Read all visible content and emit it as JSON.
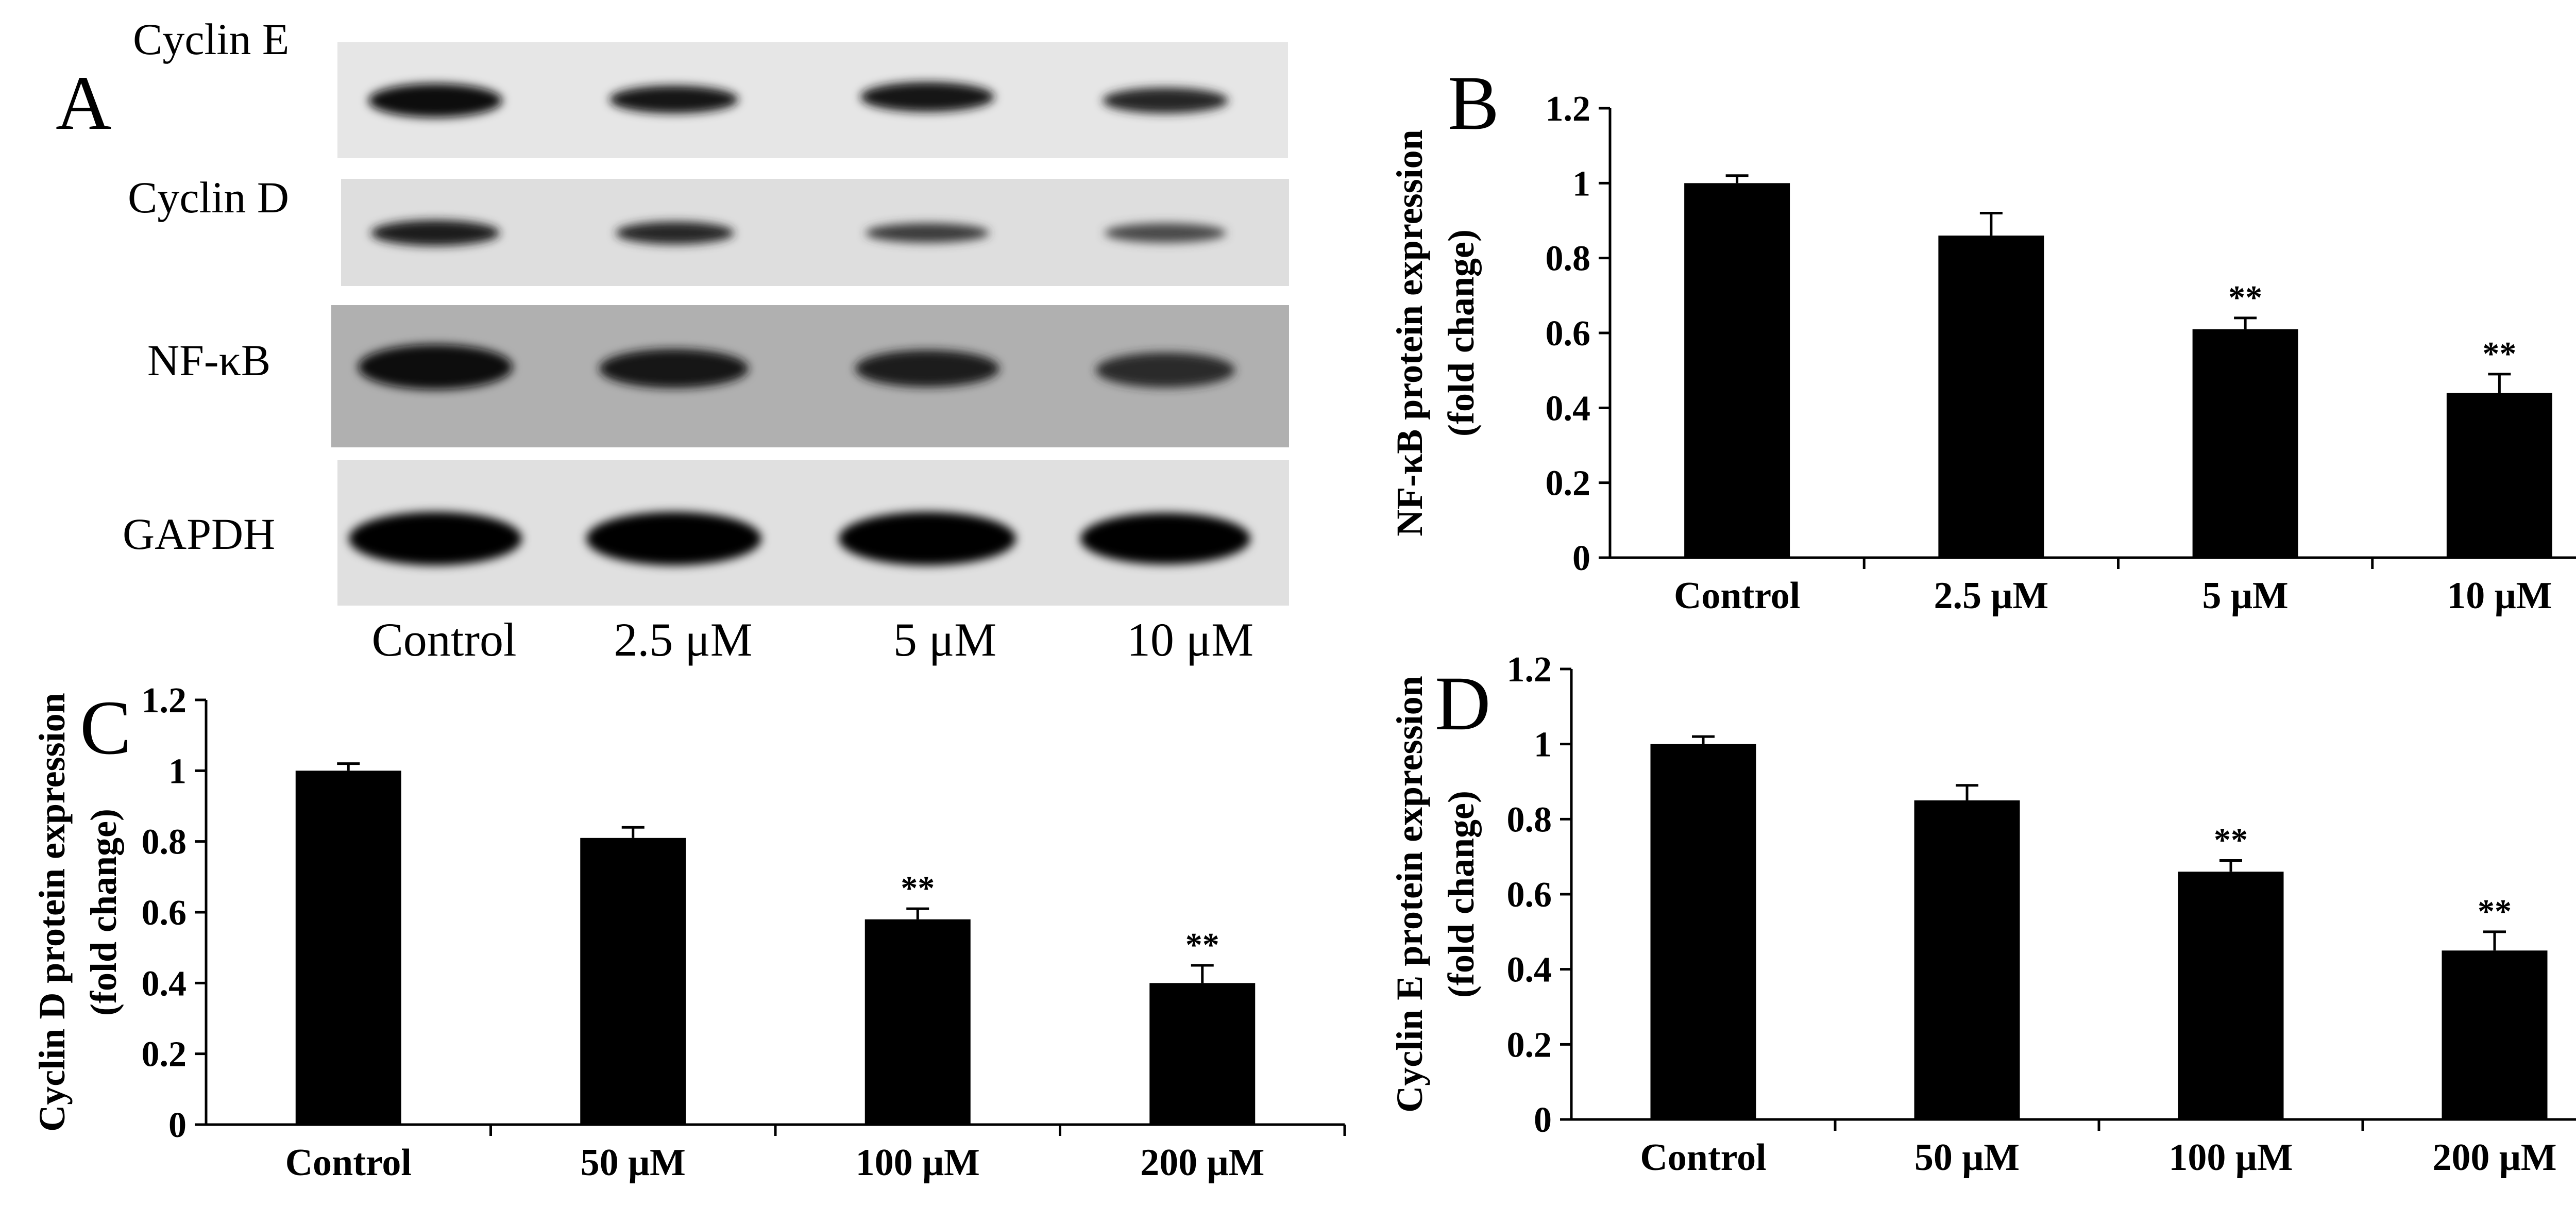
{
  "blot": {
    "letter": "A",
    "labels": [
      "Cyclin E",
      "Cyclin D",
      "NF-κB",
      "GAPDH"
    ],
    "lanes": [
      "Control",
      "2.5 μM",
      "5 μM",
      "10 μM"
    ]
  },
  "chart_data": [
    {
      "letter": "B",
      "type": "bar",
      "categories": [
        "Control",
        "2.5 μM",
        "5 μM",
        "10 μM"
      ],
      "values": [
        1.0,
        0.86,
        0.61,
        0.44
      ],
      "errors": [
        0.02,
        0.06,
        0.03,
        0.05
      ],
      "significance": [
        "",
        "",
        "**",
        "**"
      ],
      "ylabel_lines": [
        "NF-κB protein expression",
        "(fold change)"
      ],
      "xlabel": "",
      "ylim": [
        0,
        1.2
      ],
      "yticks": [
        0,
        0.2,
        0.4,
        0.6,
        0.8,
        1,
        1.2
      ],
      "ytick_labels": [
        "0",
        "0.2",
        "0.4",
        "0.6",
        "0.8",
        "1",
        "1.2"
      ],
      "bar_color": "#000000"
    },
    {
      "letter": "C",
      "type": "bar",
      "categories": [
        "Control",
        "50 μM",
        "100 μM",
        "200 μM"
      ],
      "values": [
        1.0,
        0.81,
        0.58,
        0.4
      ],
      "errors": [
        0.02,
        0.03,
        0.03,
        0.05
      ],
      "significance": [
        "",
        "",
        "**",
        "**"
      ],
      "ylabel_lines": [
        "Cyclin D protein expression",
        "(fold change)"
      ],
      "xlabel": "",
      "ylim": [
        0,
        1.2
      ],
      "yticks": [
        0,
        0.2,
        0.4,
        0.6,
        0.8,
        1,
        1.2
      ],
      "ytick_labels": [
        "0",
        "0.2",
        "0.4",
        "0.6",
        "0.8",
        "1",
        "1.2"
      ],
      "bar_color": "#000000"
    },
    {
      "letter": "D",
      "type": "bar",
      "categories": [
        "Control",
        "50 μM",
        "100 μM",
        "200 μM"
      ],
      "values": [
        1.0,
        0.85,
        0.66,
        0.45
      ],
      "errors": [
        0.02,
        0.04,
        0.03,
        0.05
      ],
      "significance": [
        "",
        "",
        "**",
        "**"
      ],
      "ylabel_lines": [
        "Cyclin  E  protein expression",
        "(fold change)"
      ],
      "xlabel": "",
      "ylim": [
        0,
        1.2
      ],
      "yticks": [
        0,
        0.2,
        0.4,
        0.6,
        0.8,
        1,
        1.2
      ],
      "ytick_labels": [
        "0",
        "0.2",
        "0.4",
        "0.6",
        "0.8",
        "1",
        "1.2"
      ],
      "bar_color": "#000000"
    }
  ]
}
